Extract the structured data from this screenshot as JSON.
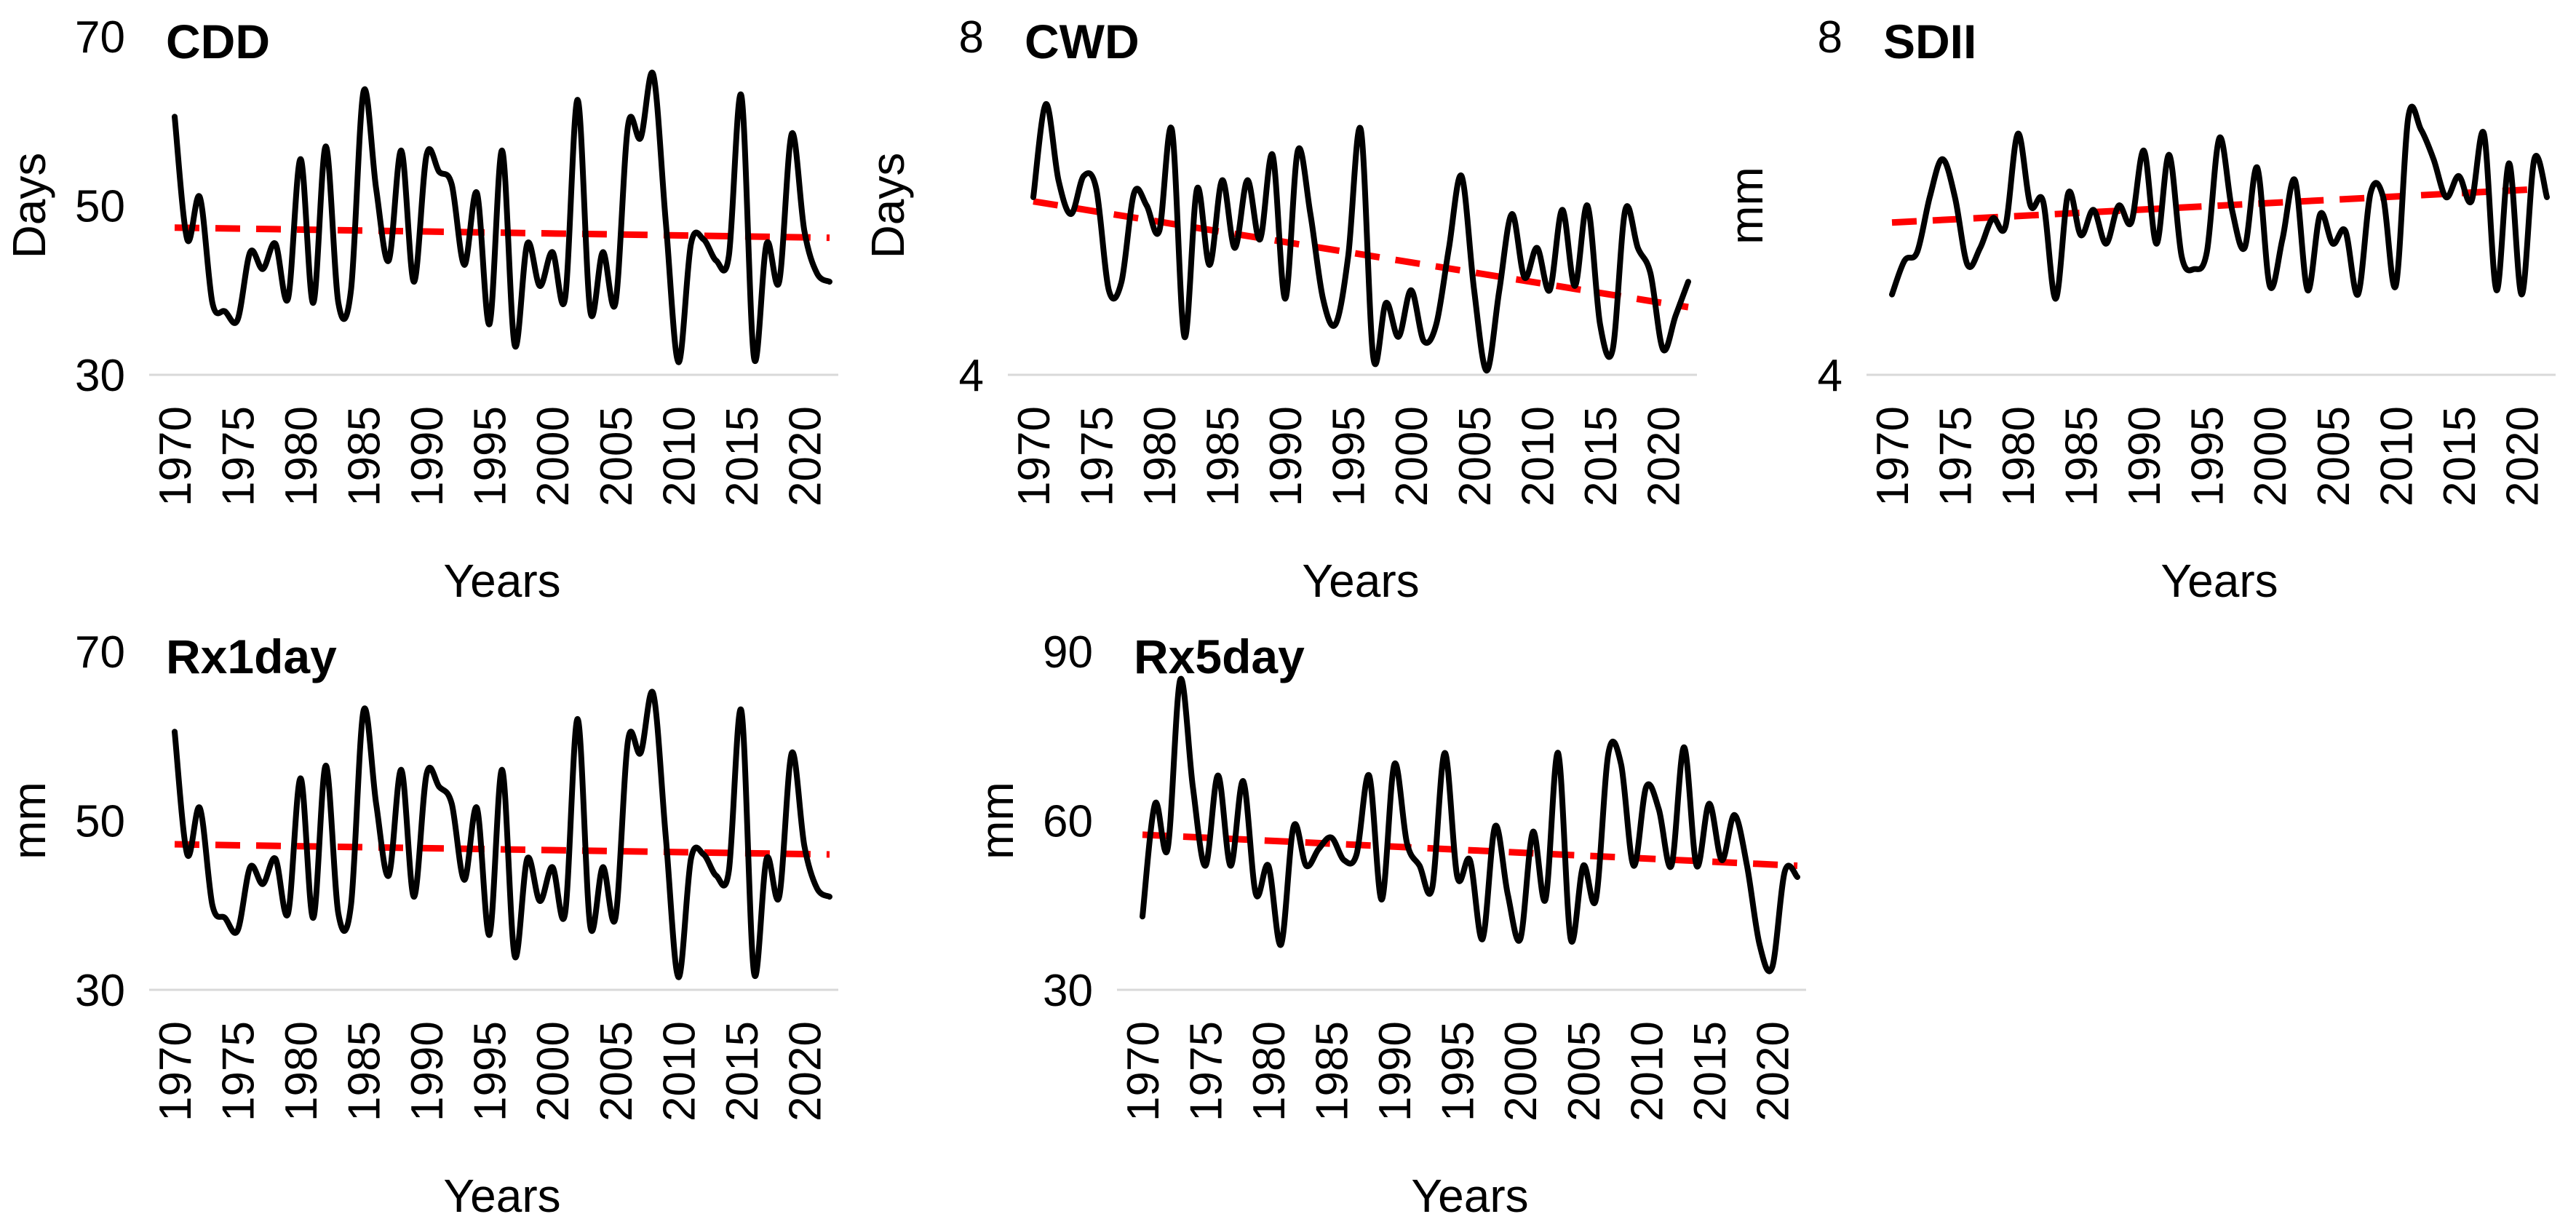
{
  "figure": {
    "description": "Five-panel annual climate extreme indices time series with linear trend lines",
    "background": "#FFFFFF",
    "series_color": "#000000",
    "trend_color": "#FF0000",
    "baseline_gridline_color": "#D9D9D9",
    "x_axis_title": "Years",
    "panel_order": [
      "CDD",
      "CWD",
      "SDII",
      "Rx1day",
      "Rx5day"
    ]
  },
  "chart_data": [
    {
      "type": "line",
      "title": "CDD",
      "y_axis_title": "Days",
      "x_axis_title": "Years",
      "ylim": [
        30,
        70
      ],
      "y_ticks": [
        70,
        50,
        30
      ],
      "x_ticks": [
        1970,
        1975,
        1980,
        1985,
        1990,
        1995,
        2000,
        2005,
        2010,
        2015,
        2020
      ],
      "x_start": 1970,
      "x_end": 2022,
      "grid": "bottom baseline only",
      "legend": "none",
      "values": [
        60.5,
        46,
        51,
        38.5,
        37.5,
        36.5,
        44.5,
        42.5,
        45.5,
        39,
        55.5,
        38.5,
        57,
        38.5,
        40,
        63.5,
        52,
        43.5,
        56.5,
        41,
        56,
        54,
        52.5,
        43,
        51.5,
        36,
        56.5,
        33.5,
        45.5,
        40.5,
        44.5,
        39,
        62.5,
        37.5,
        44.5,
        38.5,
        59.5,
        58,
        65.5,
        48,
        31.5,
        45.5,
        46,
        43.5,
        44,
        63,
        32,
        45.5,
        41,
        58.5,
        47,
        42,
        41
      ],
      "trendline": {
        "start": 47.4,
        "end": 46.2,
        "style": "dashed",
        "color": "#FF0000"
      }
    },
    {
      "type": "line",
      "title": "CWD",
      "y_axis_title": "Days",
      "x_axis_title": "Years",
      "ylim": [
        4,
        8
      ],
      "y_ticks": [
        8,
        4
      ],
      "x_ticks": [
        1970,
        1975,
        1980,
        1985,
        1990,
        1995,
        2000,
        2005,
        2010,
        2015,
        2020
      ],
      "x_start": 1970,
      "x_end": 2022,
      "grid": "bottom baseline only",
      "legend": "none",
      "values": [
        6.1,
        7.2,
        6.3,
        5.9,
        6.35,
        6.2,
        5.0,
        5.1,
        6.15,
        6.0,
        5.7,
        6.9,
        4.45,
        6.2,
        5.3,
        6.3,
        5.5,
        6.3,
        5.6,
        6.6,
        4.9,
        6.65,
        5.9,
        4.9,
        4.6,
        5.4,
        6.9,
        4.2,
        4.85,
        4.45,
        5.0,
        4.4,
        4.6,
        5.5,
        6.35,
        5.0,
        4.05,
        5.0,
        5.9,
        5.15,
        5.5,
        5.0,
        5.95,
        5.05,
        6.0,
        4.6,
        4.3,
        5.95,
        5.5,
        5.2,
        4.3,
        4.7,
        5.1
      ],
      "trendline": {
        "start": 6.05,
        "end": 4.8,
        "style": "dashed",
        "color": "#FF0000"
      }
    },
    {
      "type": "line",
      "title": "SDII",
      "y_axis_title": "mm",
      "x_axis_title": "Years",
      "ylim": [
        4,
        8
      ],
      "y_ticks": [
        8,
        4
      ],
      "x_ticks": [
        1970,
        1975,
        1980,
        1985,
        1990,
        1995,
        2000,
        2005,
        2010,
        2015,
        2020
      ],
      "x_start": 1970,
      "x_end": 2022,
      "grid": "bottom baseline only",
      "legend": "none",
      "values": [
        4.95,
        5.35,
        5.45,
        6.1,
        6.55,
        6.1,
        5.3,
        5.5,
        5.85,
        5.75,
        6.85,
        6.0,
        6.05,
        4.9,
        6.15,
        5.65,
        5.95,
        5.55,
        6.0,
        5.8,
        6.65,
        5.55,
        6.6,
        5.4,
        5.25,
        5.45,
        6.8,
        5.95,
        5.5,
        6.45,
        5.05,
        5.6,
        6.3,
        5.0,
        5.9,
        5.55,
        5.7,
        4.95,
        6.15,
        6.1,
        5.05,
        7.05,
        6.9,
        6.55,
        6.1,
        6.35,
        6.05,
        6.85,
        5.0,
        6.5,
        4.95,
        6.55,
        6.1
      ],
      "trendline": {
        "start": 5.8,
        "end": 6.2,
        "style": "dashed",
        "color": "#FF0000"
      }
    },
    {
      "type": "line",
      "title": "Rx1day",
      "y_axis_title": "mm",
      "x_axis_title": "Years",
      "ylim": [
        30,
        70
      ],
      "y_ticks": [
        70,
        50,
        30
      ],
      "x_ticks": [
        1970,
        1975,
        1980,
        1985,
        1990,
        1995,
        2000,
        2005,
        2010,
        2015,
        2020
      ],
      "x_start": 1970,
      "x_end": 2022,
      "grid": "bottom baseline only",
      "legend": "none",
      "values": [
        60.5,
        46,
        51.5,
        40,
        38.5,
        37,
        44.5,
        42.5,
        45.5,
        39,
        55,
        38.5,
        56.5,
        39,
        40,
        63,
        52,
        43.5,
        56,
        41,
        55.5,
        54,
        52,
        43,
        51.5,
        36.5,
        56,
        34,
        45.5,
        40.5,
        44.5,
        39,
        62,
        37.5,
        44.5,
        38.5,
        59.5,
        58,
        65,
        48,
        31.5,
        45.5,
        46,
        43.5,
        44,
        63,
        32,
        45.5,
        41,
        58,
        47,
        42,
        41
      ],
      "trendline": {
        "start": 47.2,
        "end": 46.0,
        "style": "dashed",
        "color": "#FF0000"
      }
    },
    {
      "type": "line",
      "title": "Rx5day",
      "y_axis_title": "mm",
      "x_axis_title": "Years",
      "ylim": [
        30,
        90
      ],
      "y_ticks": [
        90,
        60,
        30
      ],
      "x_ticks": [
        1970,
        1975,
        1980,
        1985,
        1990,
        1995,
        2000,
        2005,
        2010,
        2015,
        2020
      ],
      "x_start": 1970,
      "x_end": 2022,
      "grid": "bottom baseline only",
      "legend": "none",
      "values": [
        43,
        63,
        55,
        85,
        66,
        52,
        68,
        52,
        67,
        47,
        52,
        38,
        59,
        52,
        55,
        57,
        53,
        54,
        68,
        46,
        70,
        56,
        52,
        48,
        72,
        50,
        53,
        39,
        59,
        47,
        39,
        58,
        46,
        72,
        39,
        52,
        46,
        72,
        70,
        52,
        66,
        62,
        52,
        73,
        52,
        63,
        53,
        61,
        52,
        38,
        34,
        51,
        50
      ],
      "trendline": {
        "start": 57.5,
        "end": 52.0,
        "style": "dashed",
        "color": "#FF0000"
      }
    }
  ]
}
